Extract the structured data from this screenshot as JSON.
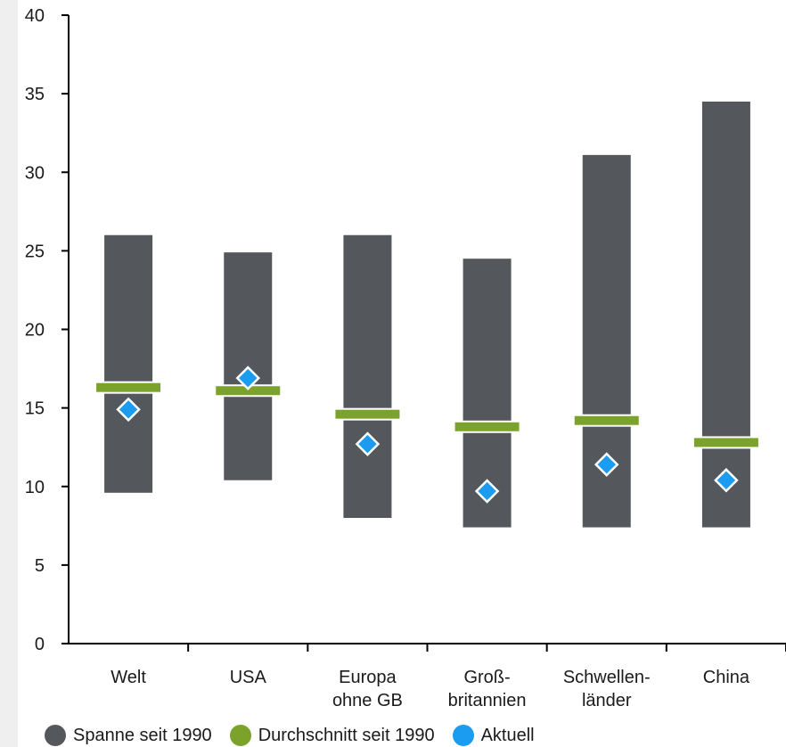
{
  "colors": {
    "range": "#54575b",
    "average": "#7ba32c",
    "current": "#1b9cf0",
    "axis": "#000000"
  },
  "chart_data": {
    "type": "range-bar",
    "categories": [
      [
        "Welt"
      ],
      [
        "USA"
      ],
      [
        "Europa",
        "ohne GB"
      ],
      [
        "Groß-",
        "britannien"
      ],
      [
        "Schwellen-",
        "länder"
      ],
      [
        "China"
      ]
    ],
    "series": [
      {
        "name": "Spanne seit 1990",
        "low": [
          9.6,
          10.4,
          8.0,
          7.4,
          7.4,
          7.4
        ],
        "high": [
          26.0,
          24.9,
          26.0,
          24.5,
          31.1,
          34.5
        ]
      },
      {
        "name": "Durchschnitt seit 1990",
        "values": [
          16.3,
          16.1,
          14.6,
          13.8,
          14.2,
          12.8
        ]
      },
      {
        "name": "Aktuell",
        "values": [
          14.9,
          16.9,
          12.7,
          9.7,
          11.4,
          10.4
        ]
      }
    ],
    "ylim": [
      0,
      40
    ],
    "yticks": [
      0,
      5,
      10,
      15,
      20,
      25,
      30,
      35,
      40
    ],
    "legend_position": "bottom"
  }
}
